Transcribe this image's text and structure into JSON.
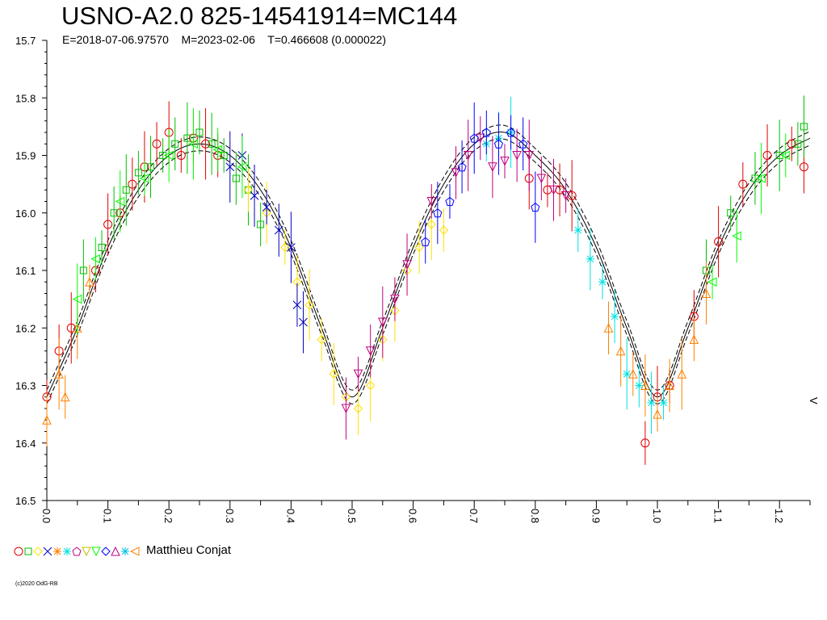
{
  "header": {
    "title": "USNO-A2.0 825-14541914=MC144",
    "subtitle": "E=2018-07-06.97570    M=2023-02-06    T=0.466608 (0.000022)"
  },
  "legend": {
    "observer": "Matthieu Conjat",
    "symbol_colors": [
      "#e00000",
      "#00c000",
      "#ffe000",
      "#0000c0",
      "#ff8000",
      "#00e0e0",
      "#c00080",
      "#c0c000",
      "#00ff00",
      "#0000ff",
      "#c00080",
      "#00c0e0",
      "#ff8000"
    ]
  },
  "footer": {
    "copyright": "(c)2020 OdG-RB"
  },
  "chart_data": {
    "type": "scatter",
    "xlabel": "",
    "ylabel": "",
    "xlim": [
      0.0,
      1.25
    ],
    "ylim": [
      15.7,
      16.5
    ],
    "y_inverted": true,
    "x_ticks": [
      "0.0",
      "0.1",
      "0.2",
      "0.3",
      "0.4",
      "0.5",
      "0.6",
      "0.7",
      "0.8",
      "0.9",
      "1.0",
      "1.1",
      "1.2"
    ],
    "y_ticks": [
      "15.7",
      "15.8",
      "15.9",
      "16.0",
      "16.1",
      "16.2",
      "16.3",
      "16.4",
      "16.5"
    ],
    "y_tick_values": [
      15.7,
      15.8,
      15.9,
      16.0,
      16.1,
      16.2,
      16.3,
      16.4,
      16.5
    ],
    "marker_text": "V",
    "fit_curve": {
      "phase": [
        0.0,
        0.05,
        0.1,
        0.15,
        0.2,
        0.25,
        0.3,
        0.35,
        0.4,
        0.45,
        0.5,
        0.55,
        0.6,
        0.65,
        0.7,
        0.75,
        0.8,
        0.85,
        0.9,
        0.95,
        1.0,
        1.05,
        1.1,
        1.15,
        1.2,
        1.25
      ],
      "mag": [
        16.32,
        16.2,
        16.06,
        15.96,
        15.9,
        15.88,
        15.9,
        15.96,
        16.06,
        16.2,
        16.32,
        16.2,
        16.06,
        15.95,
        15.88,
        15.86,
        15.9,
        15.96,
        16.06,
        16.2,
        16.32,
        16.2,
        16.06,
        15.96,
        15.9,
        15.87
      ]
    },
    "series": [
      {
        "color": "#e00000",
        "x": [
          0.0,
          0.02,
          0.04,
          0.08,
          0.1,
          0.12,
          0.14,
          0.16,
          0.18,
          0.2,
          0.22,
          0.24,
          0.26,
          0.28,
          0.79,
          0.82,
          0.84,
          0.86,
          0.98,
          1.0,
          1.02,
          1.06,
          1.1,
          1.14,
          1.18,
          1.22,
          1.24
        ],
        "y": [
          16.32,
          16.24,
          16.2,
          16.1,
          16.02,
          16.0,
          15.95,
          15.92,
          15.88,
          15.86,
          15.9,
          15.87,
          15.88,
          15.9,
          15.94,
          15.96,
          15.96,
          15.97,
          16.4,
          16.32,
          16.3,
          16.18,
          16.05,
          15.95,
          15.9,
          15.88,
          15.92
        ]
      },
      {
        "color": "#00c000",
        "x": [
          0.06,
          0.09,
          0.11,
          0.13,
          0.15,
          0.17,
          0.19,
          0.21,
          0.23,
          0.25,
          0.27,
          0.29,
          0.31,
          0.33,
          0.35,
          1.08,
          1.12,
          1.16,
          1.2,
          1.23,
          1.24
        ],
        "y": [
          16.1,
          16.06,
          16.0,
          15.96,
          15.93,
          15.92,
          15.9,
          15.88,
          15.87,
          15.86,
          15.88,
          15.9,
          15.94,
          15.96,
          16.02,
          16.1,
          16.0,
          15.94,
          15.9,
          15.88,
          15.85
        ]
      },
      {
        "color": "#ffe000",
        "x": [
          0.33,
          0.36,
          0.39,
          0.41,
          0.43,
          0.45,
          0.47,
          0.49,
          0.51,
          0.53,
          0.55,
          0.57,
          0.59,
          0.61,
          0.63,
          0.65
        ],
        "y": [
          15.96,
          16.0,
          16.06,
          16.12,
          16.16,
          16.22,
          16.28,
          16.32,
          16.34,
          16.3,
          16.22,
          16.17,
          16.1,
          16.06,
          16.02,
          16.03
        ]
      },
      {
        "color": "#0000c0",
        "x": [
          0.3,
          0.32,
          0.34,
          0.36,
          0.38,
          0.4,
          0.41,
          0.42
        ],
        "y": [
          15.92,
          15.9,
          15.97,
          15.99,
          16.03,
          16.06,
          16.16,
          16.19
        ]
      },
      {
        "color": "#ff8000",
        "x": [
          0.0,
          0.02,
          0.03,
          0.05,
          0.07,
          0.92,
          0.94,
          0.96,
          0.98,
          1.0,
          1.02,
          1.04,
          1.06,
          1.08
        ],
        "y": [
          16.36,
          16.28,
          16.32,
          16.2,
          16.12,
          16.2,
          16.24,
          16.28,
          16.3,
          16.35,
          16.3,
          16.28,
          16.22,
          16.14
        ]
      },
      {
        "color": "#00e0e0",
        "x": [
          0.72,
          0.74,
          0.76,
          0.87,
          0.89,
          0.91,
          0.93,
          0.95,
          0.97,
          0.99,
          1.01
        ],
        "y": [
          15.88,
          15.87,
          15.86,
          16.03,
          16.08,
          16.12,
          16.18,
          16.28,
          16.3,
          16.33,
          16.33
        ]
      },
      {
        "color": "#c00080",
        "x": [
          0.49,
          0.51,
          0.53,
          0.55,
          0.57,
          0.59,
          0.63,
          0.67,
          0.69,
          0.71,
          0.73,
          0.75,
          0.77,
          0.79,
          0.81,
          0.83,
          0.85
        ],
        "y": [
          16.34,
          16.28,
          16.24,
          16.19,
          16.15,
          16.09,
          15.98,
          15.93,
          15.9,
          15.87,
          15.92,
          15.91,
          15.9,
          15.9,
          15.94,
          15.96,
          15.97
        ]
      },
      {
        "color": "#0000ff",
        "x": [
          0.62,
          0.64,
          0.66,
          0.68,
          0.7,
          0.72,
          0.74,
          0.76,
          0.78,
          0.8
        ],
        "y": [
          16.05,
          16.0,
          15.98,
          15.92,
          15.87,
          15.86,
          15.88,
          15.86,
          15.88,
          15.99
        ]
      },
      {
        "color": "#00ff00",
        "x": [
          0.05,
          0.08,
          0.12,
          0.16,
          0.2,
          0.24,
          0.28,
          0.32,
          1.09,
          1.13,
          1.17,
          1.21
        ],
        "y": [
          16.15,
          16.08,
          15.98,
          15.94,
          15.9,
          15.88,
          15.89,
          15.92,
          16.12,
          16.04,
          15.94,
          15.9
        ]
      }
    ]
  }
}
